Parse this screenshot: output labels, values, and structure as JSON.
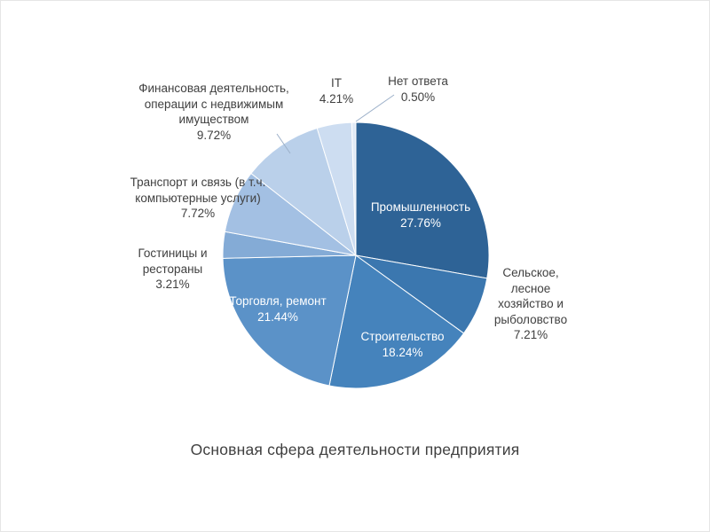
{
  "title": "Основная сфера деятельности предприятия",
  "colors": {
    "background": "#ffffff",
    "outside_label_text": "#404040",
    "inside_label_text": "#ffffff",
    "leader_line": "#9cb0c9",
    "slice_border": "#ffffff"
  },
  "chart_data": {
    "type": "pie",
    "title": "Основная сфера деятельности предприятия",
    "direction": "clockwise",
    "start_angle_deg": 0,
    "legend": "none",
    "slices": [
      {
        "label": "Промышленность",
        "value": 27.76,
        "pct_label": "27.76%",
        "color": "#2e6396",
        "label_placement": "inside"
      },
      {
        "label": "Сельское, лесное хозяйство и рыболовство",
        "value": 7.21,
        "pct_label": "7.21%",
        "color": "#3b77af",
        "label_placement": "outside"
      },
      {
        "label": "Строительство",
        "value": 18.24,
        "pct_label": "18.24%",
        "color": "#4583bc",
        "label_placement": "inside"
      },
      {
        "label": "Торговля, ремонт",
        "value": 21.44,
        "pct_label": "21.44%",
        "color": "#5b92c8",
        "label_placement": "inside"
      },
      {
        "label": "Гостиницы и рестораны",
        "value": 3.21,
        "pct_label": "3.21%",
        "color": "#84abd6",
        "label_placement": "outside"
      },
      {
        "label": "Транспорт и связь (в т.ч. компьютерные услуги)",
        "value": 7.72,
        "pct_label": "7.72%",
        "color": "#a3c0e3",
        "label_placement": "outside"
      },
      {
        "label": "Финансовая деятельность, операции с недвижимым имуществом",
        "value": 9.72,
        "pct_label": "9.72%",
        "color": "#bad0ea",
        "label_placement": "outside"
      },
      {
        "label": "IT",
        "value": 4.21,
        "pct_label": "4.21%",
        "color": "#cdddf1",
        "label_placement": "outside"
      },
      {
        "label": "Нет ответа",
        "value": 0.5,
        "pct_label": "0.50%",
        "color": "#e0eaf6",
        "label_placement": "outside"
      }
    ]
  }
}
